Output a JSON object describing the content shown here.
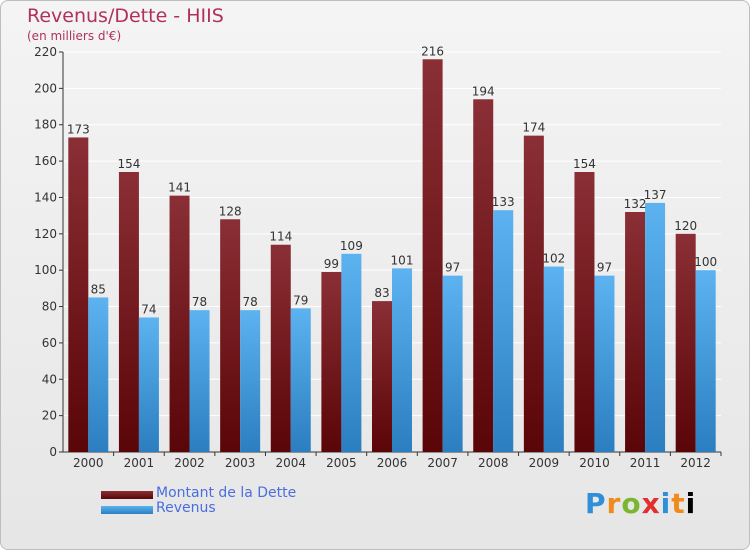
{
  "chart_data": {
    "type": "bar",
    "title": "Revenus/Dette - HIIS",
    "subtitle": "(en milliers d'€)",
    "xlabel": "",
    "ylabel": "",
    "ylim": [
      0,
      220
    ],
    "yticks": [
      0,
      20,
      40,
      60,
      80,
      100,
      120,
      140,
      160,
      180,
      200,
      220
    ],
    "grid": true,
    "legend_position": "bottom-left",
    "categories": [
      "2000",
      "2001",
      "2002",
      "2003",
      "2004",
      "2005",
      "2006",
      "2007",
      "2008",
      "2009",
      "2010",
      "2011",
      "2012"
    ],
    "series": [
      {
        "name": "Montant de la Dette",
        "color": "#7a1f24",
        "values": [
          173,
          154,
          141,
          128,
          114,
          99,
          83,
          216,
          194,
          174,
          154,
          132,
          120
        ]
      },
      {
        "name": "Revenus",
        "color": "#4da6e6",
        "values": [
          85,
          74,
          78,
          78,
          79,
          109,
          101,
          97,
          133,
          102,
          97,
          137,
          100
        ]
      }
    ]
  },
  "branding": {
    "logo_letters": [
      "P",
      "r",
      "o",
      "x",
      "i",
      "t",
      "i"
    ]
  }
}
